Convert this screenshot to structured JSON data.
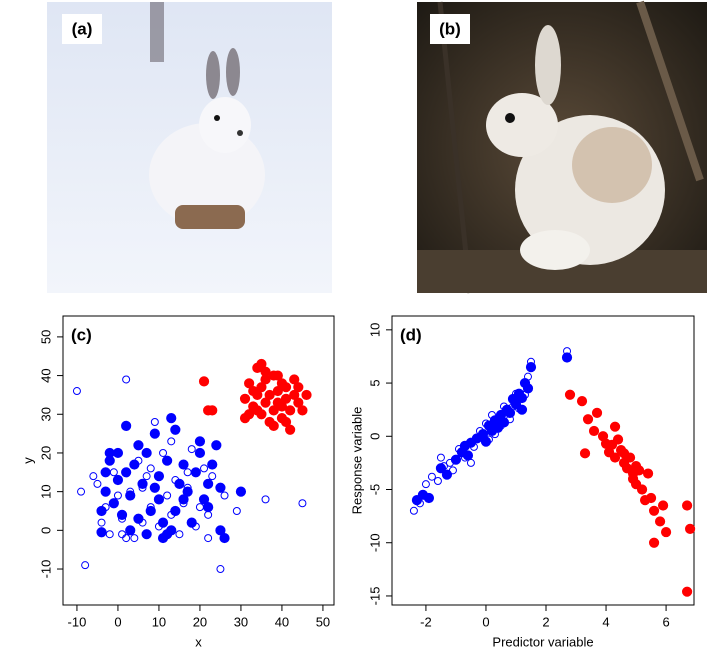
{
  "images": [
    {
      "label": "(a)"
    },
    {
      "label": "(b)"
    }
  ],
  "chart_data": [
    {
      "type": "scatter",
      "label": "(c)",
      "xlabel": "x",
      "ylabel": "y",
      "xlim": [
        -13.4,
        52.7
      ],
      "ylim": [
        -19.3,
        55.4
      ],
      "xticks": [
        -10,
        0,
        10,
        20,
        30,
        40,
        50
      ],
      "yticks": [
        -10,
        0,
        10,
        20,
        30,
        40,
        50
      ],
      "series": [
        {
          "color": "#ff0000",
          "marker": "filled",
          "x": [
            21,
            22,
            23,
            31,
            31,
            32,
            32,
            33,
            33,
            34,
            34,
            35,
            35,
            35,
            36,
            36,
            37,
            37,
            38,
            38,
            39,
            39,
            40,
            40,
            41,
            41,
            42,
            42,
            43,
            43,
            44,
            44,
            45,
            46,
            36,
            38,
            40,
            34,
            39,
            41
          ],
          "y": [
            38.5,
            31,
            31,
            29,
            34,
            30,
            38,
            36,
            32,
            42,
            35,
            43,
            30,
            37,
            33,
            39,
            28,
            35,
            40,
            31,
            36,
            33,
            38,
            29,
            34,
            37,
            31,
            26,
            39,
            35,
            33,
            37,
            31,
            35,
            41,
            27,
            32,
            31,
            40,
            28
          ]
        },
        {
          "color": "#0000ff",
          "marker": "filled",
          "x": [
            -4,
            -3,
            -3,
            -2,
            -2,
            -1,
            0,
            0,
            1,
            2,
            2,
            3,
            3,
            4,
            5,
            5,
            6,
            7,
            8,
            9,
            10,
            10,
            11,
            11,
            12,
            12,
            13,
            13,
            14,
            14,
            15,
            16,
            17,
            18,
            19,
            20,
            20,
            21,
            22,
            22,
            23,
            24,
            25,
            25,
            26,
            30,
            -4,
            7,
            9,
            16
          ],
          "y": [
            5,
            10,
            15,
            18,
            20,
            7,
            13,
            20,
            4,
            27,
            15,
            0,
            9,
            17,
            3,
            22,
            12,
            20,
            5,
            11,
            14,
            8,
            -2,
            2,
            18,
            -1,
            29,
            0,
            5,
            26,
            12,
            17,
            10,
            2,
            15,
            23,
            20,
            8,
            12,
            6,
            17,
            22,
            0,
            11,
            -2,
            10,
            -0.5,
            -1,
            25,
            8
          ]
        },
        {
          "color": "#0000ff",
          "marker": "open",
          "x": [
            -10,
            -9,
            -8,
            -5,
            -4,
            -3,
            -2,
            -1,
            0,
            1,
            2,
            2,
            3,
            4,
            5,
            6,
            6,
            7,
            8,
            9,
            10,
            11,
            12,
            13,
            14,
            15,
            16,
            17,
            18,
            19,
            20,
            21,
            22,
            22,
            23,
            25,
            26,
            29,
            36,
            45,
            -6,
            1,
            8,
            13,
            17
          ],
          "y": [
            36,
            10,
            -9,
            12,
            2,
            6,
            -1,
            15,
            9,
            -1,
            39,
            -2,
            10,
            -2,
            18,
            2,
            11,
            14,
            6,
            28,
            1,
            20,
            9,
            4,
            13,
            -1,
            7,
            11,
            21,
            1,
            6,
            16,
            -2,
            4,
            14,
            -10,
            9,
            5,
            8,
            7,
            14,
            3,
            16,
            23,
            15
          ]
        }
      ]
    },
    {
      "type": "scatter",
      "label": "(d)",
      "xlabel": "Predictor variable",
      "ylabel": "Response variable",
      "xlim": [
        -3.13,
        6.93
      ],
      "ylim": [
        -15.85,
        11.3
      ],
      "xticks": [
        -2,
        0,
        2,
        4,
        6
      ],
      "yticks": [
        -15,
        -10,
        -5,
        0,
        5,
        10
      ],
      "series": [
        {
          "color": "#0000ff",
          "marker": "filled",
          "x": [
            -2.3,
            -2.1,
            -1.9,
            -1.5,
            -1.3,
            -1.0,
            -0.8,
            -0.6,
            -0.5,
            -0.3,
            -0.1,
            0.0,
            0.1,
            0.2,
            0.3,
            0.4,
            0.5,
            0.6,
            0.7,
            0.8,
            0.9,
            1.0,
            1.1,
            1.2,
            1.3,
            1.4,
            1.5,
            2.7,
            1.2,
            -0.7
          ],
          "y": [
            -6,
            -5.5,
            -5.8,
            -3,
            -3.6,
            -2.2,
            -1.5,
            -1.8,
            -0.6,
            -0.2,
            0.2,
            -0.5,
            1,
            0.5,
            1.5,
            0.8,
            2,
            1.3,
            2.5,
            2.2,
            3.5,
            3,
            4,
            3.6,
            5,
            4.5,
            6.5,
            7.4,
            2.5,
            -0.9
          ]
        },
        {
          "color": "#0000ff",
          "marker": "open",
          "x": [
            -2.4,
            -2.2,
            -2.0,
            -1.8,
            -1.6,
            -1.4,
            -1.2,
            -1.1,
            -0.9,
            -0.7,
            -0.4,
            -0.2,
            0.0,
            0.1,
            0.3,
            0.5,
            0.6,
            0.8,
            1.0,
            1.1,
            1.3,
            1.5,
            1.4,
            0.9,
            2.7,
            -1.5,
            0.2,
            -0.5
          ],
          "y": [
            -7,
            -6.3,
            -4.5,
            -3.8,
            -4.2,
            -2.8,
            -2.5,
            -3.2,
            -1.2,
            -2,
            -1,
            0.5,
            1.2,
            -0.3,
            0.2,
            1,
            2.8,
            1.6,
            4,
            2.6,
            3.9,
            7,
            5.6,
            2.8,
            8,
            -2,
            2,
            -2.5
          ]
        },
        {
          "color": "#ff0000",
          "marker": "filled",
          "x": [
            2.8,
            3.2,
            3.4,
            3.6,
            3.7,
            3.9,
            4.0,
            4.1,
            4.2,
            4.3,
            4.3,
            4.4,
            4.5,
            4.6,
            4.6,
            4.7,
            4.8,
            4.9,
            5.0,
            5.0,
            5.1,
            5.2,
            5.3,
            5.4,
            5.5,
            5.6,
            5.6,
            5.8,
            5.9,
            6.0,
            6.7,
            6.8,
            6.7,
            3.3,
            4.9
          ],
          "y": [
            3.9,
            3.3,
            1.6,
            0.5,
            2.2,
            0,
            -0.7,
            -1.5,
            -0.8,
            -2,
            0.9,
            -0.3,
            -1.3,
            -2.5,
            -1.6,
            -3,
            -2,
            -3.5,
            -2.8,
            -4.5,
            -3.2,
            -5,
            -6,
            -3.5,
            -5.8,
            -7,
            -10,
            -8,
            -6.5,
            -9,
            -6.5,
            -8.7,
            -14.6,
            -1.6,
            -4
          ]
        }
      ]
    }
  ]
}
